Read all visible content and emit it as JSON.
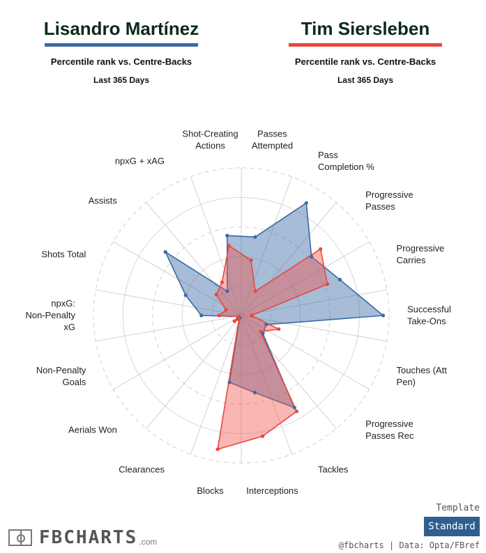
{
  "players": [
    {
      "name": "Lisandro Martínez",
      "color": "#3a6aa6",
      "subtitle": "Percentile rank vs. Centre-Backs",
      "period": "Last 365 Days"
    },
    {
      "name": "Tim Siersleben",
      "color": "#e8483c",
      "subtitle": "Percentile rank vs. Centre-Backs",
      "period": "Last 365 Days"
    }
  ],
  "chart_data": {
    "type": "radar",
    "title": "",
    "range": [
      0,
      100
    ],
    "categories": [
      "Passes Attempted",
      "Pass Completion %",
      "Progressive Passes",
      "Progressive Carries",
      "Successful Take-Ons",
      "Touches (Att Pen)",
      "Progressive Passes Rec",
      "Tackles",
      "Interceptions",
      "Blocks",
      "Clearances",
      "Aerials Won",
      "Non-Penalty Goals",
      "npxG: Non-Penalty xG",
      "Shots Total",
      "Assists",
      "npxG + xAG",
      "Shot-Creating Actions"
    ],
    "series": [
      {
        "name": "Lisandro Martínez",
        "color": "#3a6aa6",
        "values": [
          54,
          88,
          62,
          71,
          96,
          18,
          19,
          72,
          53,
          46,
          2,
          3,
          2,
          27,
          40,
          67,
          19,
          55
        ]
      },
      {
        "name": "Tim Siersleben",
        "color": "#e8483c",
        "values": [
          38,
          19,
          70,
          62,
          7,
          27,
          17,
          75,
          83,
          92,
          3,
          6,
          2,
          15,
          11,
          22,
          26,
          48
        ]
      }
    ]
  },
  "branding": {
    "logo": "FBCHARTS",
    "domain": ".com",
    "template_label": "Template",
    "template_value": "Standard",
    "credit": "@fbcharts | Data: Opta/FBref"
  }
}
